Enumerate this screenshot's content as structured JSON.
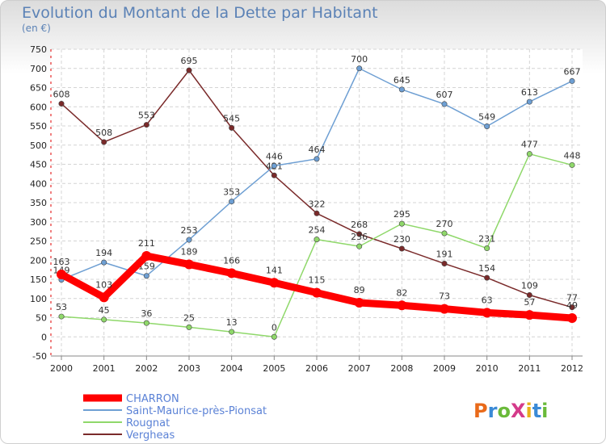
{
  "chart_data": {
    "type": "line",
    "title": "Evolution du Montant de la Dette par Habitant",
    "subtitle": "(en €)",
    "x": [
      "2000",
      "2001",
      "2002",
      "2003",
      "2004",
      "2005",
      "2006",
      "2007",
      "2008",
      "2009",
      "2010",
      "2011",
      "2012"
    ],
    "ylim": [
      -50,
      750
    ],
    "yticks": [
      -50,
      0,
      50,
      100,
      150,
      200,
      250,
      300,
      350,
      400,
      450,
      500,
      550,
      600,
      650,
      700,
      750
    ],
    "grid": true,
    "legend_position": "bottom-left",
    "series": [
      {
        "name": "Vergheas",
        "color": "#7a2a2a",
        "values": [
          608,
          508,
          553,
          695,
          545,
          421,
          322,
          268,
          230,
          191,
          154,
          109,
          77
        ]
      },
      {
        "name": "Saint-Maurice-près-Pionsat",
        "color": "#6e9fd3",
        "values": [
          149,
          194,
          159,
          253,
          353,
          446,
          464,
          700,
          645,
          607,
          549,
          613,
          667
        ]
      },
      {
        "name": "Rougnat",
        "color": "#8fd86a",
        "values": [
          53,
          45,
          36,
          25,
          13,
          0,
          254,
          236,
          295,
          270,
          231,
          477,
          448
        ]
      },
      {
        "name": "CHARRON",
        "color": "#ff0000",
        "values": [
          163,
          103,
          211,
          189,
          166,
          141,
          115,
          89,
          82,
          73,
          63,
          57,
          49
        ]
      }
    ],
    "legend": [
      "CHARRON",
      "Saint-Maurice-près-Pionsat",
      "Rougnat",
      "Vergheas"
    ]
  },
  "logo": {
    "text": "ProXiti"
  }
}
